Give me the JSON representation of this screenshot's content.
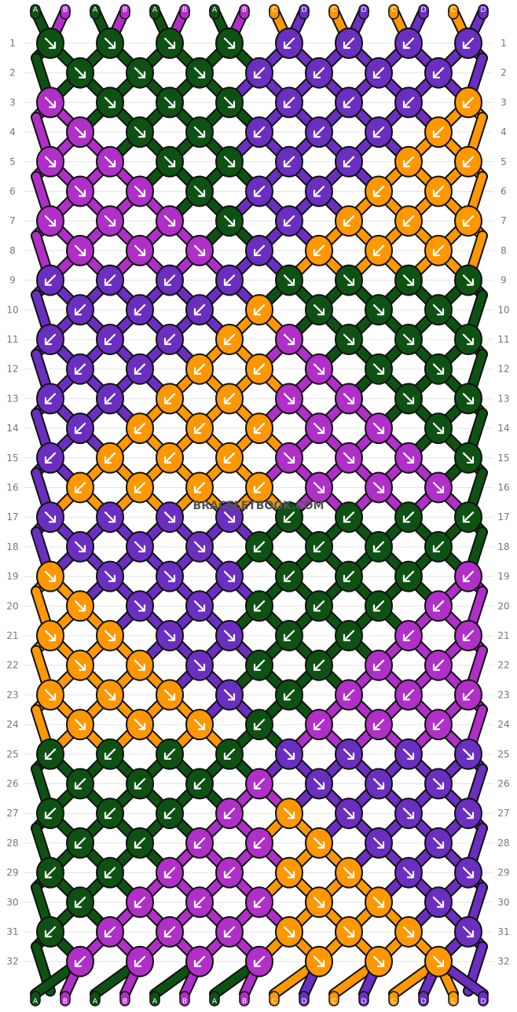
{
  "pattern": {
    "rows": 32,
    "knots_per_odd_row": 8,
    "knots_per_even_row": 7,
    "string_letters_top": [
      "A",
      "B",
      "A",
      "B",
      "A",
      "B",
      "A",
      "B",
      "C",
      "D",
      "C",
      "D",
      "C",
      "D",
      "C",
      "D"
    ],
    "string_letters_bottom": [
      "A",
      "B",
      "A",
      "B",
      "A",
      "B",
      "A",
      "B",
      "C",
      "D",
      "C",
      "D",
      "C",
      "D",
      "C",
      "D"
    ],
    "colors": {
      "A": "#0d5212",
      "B": "#b02fc8",
      "C": "#ff9800",
      "D": "#6a2fc0"
    },
    "watermark": "BRACELETBOOK.COM",
    "row_numbers": [
      "1",
      "2",
      "3",
      "4",
      "5",
      "6",
      "7",
      "8",
      "9",
      "10",
      "11",
      "12",
      "13",
      "14",
      "15",
      "16",
      "17",
      "18",
      "19",
      "20",
      "21",
      "22",
      "23",
      "24",
      "25",
      "26",
      "27",
      "28",
      "29",
      "30",
      "31",
      "32"
    ],
    "knots": [
      [
        "A:R",
        "A:R",
        "A:R",
        "A:R",
        "D:L",
        "D:L",
        "D:L",
        "D:L"
      ],
      [
        "A:R",
        "A:R",
        "A:R",
        "D:L",
        "D:L",
        "D:L",
        "D:L"
      ],
      [
        "B:R",
        "A:R",
        "A:R",
        "A:R",
        "D:L",
        "D:L",
        "D:L",
        "C:L"
      ],
      [
        "B:R",
        "A:R",
        "A:R",
        "D:L",
        "D:L",
        "D:L",
        "C:L"
      ],
      [
        "B:R",
        "B:R",
        "A:R",
        "A:R",
        "D:L",
        "D:L",
        "C:L",
        "C:L"
      ],
      [
        "B:R",
        "B:R",
        "A:R",
        "D:L",
        "D:L",
        "C:L",
        "C:L"
      ],
      [
        "B:R",
        "B:R",
        "B:R",
        "A:R",
        "D:L",
        "C:L",
        "C:L",
        "C:L"
      ],
      [
        "B:R",
        "B:R",
        "B:R",
        "D:L",
        "C:L",
        "C:L",
        "C:L"
      ],
      [
        "D:L",
        "D:L",
        "D:L",
        "D:L",
        "A:R",
        "A:R",
        "A:R",
        "A:R"
      ],
      [
        "D:L",
        "D:L",
        "D:L",
        "C:L",
        "A:R",
        "A:R",
        "A:R"
      ],
      [
        "D:L",
        "D:L",
        "D:L",
        "C:L",
        "B:R",
        "A:R",
        "A:R",
        "A:R"
      ],
      [
        "D:L",
        "D:L",
        "C:L",
        "C:L",
        "B:R",
        "A:R",
        "A:R"
      ],
      [
        "D:L",
        "D:L",
        "C:L",
        "C:L",
        "B:R",
        "B:R",
        "A:R",
        "A:R"
      ],
      [
        "D:L",
        "C:L",
        "C:L",
        "C:L",
        "B:R",
        "B:R",
        "A:R"
      ],
      [
        "D:L",
        "C:L",
        "C:L",
        "C:L",
        "B:R",
        "B:R",
        "B:R",
        "A:R"
      ],
      [
        "C:L",
        "C:L",
        "C:L",
        "C:L",
        "B:R",
        "B:R",
        "B:R"
      ],
      [
        "D:R",
        "D:R",
        "D:R",
        "D:R",
        "A:L",
        "A:L",
        "A:L",
        "A:L"
      ],
      [
        "D:R",
        "D:R",
        "D:R",
        "A:L",
        "A:L",
        "A:L",
        "A:L"
      ],
      [
        "C:R",
        "D:R",
        "D:R",
        "D:R",
        "A:L",
        "A:L",
        "A:L",
        "B:L"
      ],
      [
        "C:R",
        "D:R",
        "D:R",
        "A:L",
        "A:L",
        "A:L",
        "B:L"
      ],
      [
        "C:R",
        "C:R",
        "D:R",
        "D:R",
        "A:L",
        "A:L",
        "B:L",
        "B:L"
      ],
      [
        "C:R",
        "C:R",
        "D:R",
        "A:L",
        "A:L",
        "B:L",
        "B:L"
      ],
      [
        "C:R",
        "C:R",
        "C:R",
        "D:R",
        "A:L",
        "B:L",
        "B:L",
        "B:L"
      ],
      [
        "C:R",
        "C:R",
        "C:R",
        "A:L",
        "B:L",
        "B:L",
        "B:L"
      ],
      [
        "A:L",
        "A:L",
        "A:L",
        "A:L",
        "D:R",
        "D:R",
        "D:R",
        "D:R"
      ],
      [
        "A:L",
        "A:L",
        "A:L",
        "B:L",
        "D:R",
        "D:R",
        "D:R"
      ],
      [
        "A:L",
        "A:L",
        "A:L",
        "B:L",
        "C:R",
        "D:R",
        "D:R",
        "D:R"
      ],
      [
        "A:L",
        "A:L",
        "B:L",
        "B:L",
        "C:R",
        "D:R",
        "D:R"
      ],
      [
        "A:L",
        "A:L",
        "B:L",
        "B:L",
        "C:R",
        "C:R",
        "D:R",
        "D:R"
      ],
      [
        "A:L",
        "B:L",
        "B:L",
        "B:L",
        "C:R",
        "C:R",
        "D:R"
      ],
      [
        "A:L",
        "B:L",
        "B:L",
        "B:L",
        "C:R",
        "C:R",
        "C:R",
        "D:R"
      ],
      [
        "B:L",
        "B:L",
        "B:L",
        "B:L",
        "C:R",
        "C:R",
        "C:R"
      ]
    ]
  },
  "icons": {
    "arrow_right": "arrow-down-right-icon",
    "arrow_left": "arrow-down-left-icon"
  }
}
